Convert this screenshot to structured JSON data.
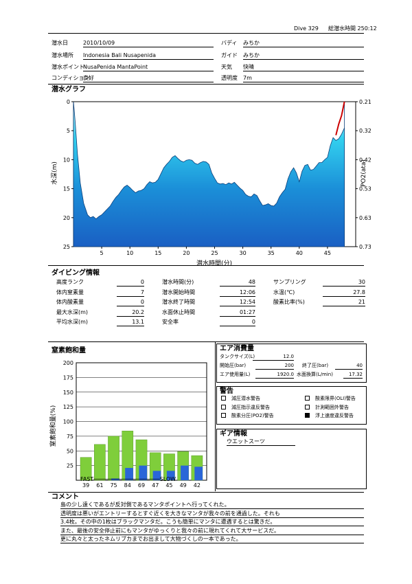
{
  "header": {
    "dive_no": "Dive 329",
    "total_time": "総潜水時間 250:12"
  },
  "info": {
    "date_label": "潜水日",
    "date": "2010/10/09",
    "buddy_label": "バディ",
    "buddy": "みちか",
    "place_label": "潜水場所",
    "place": "Indonesia Bali   Nusapenida",
    "guide_label": "ガイド",
    "guide": "みちか",
    "point_label": "潜水ポイント",
    "point": "NusaPenida   MantaPoint",
    "weather_label": "天気",
    "weather": "快晴",
    "condition_label": "コンディション",
    "condition": "良好",
    "visibility_label": "透明度",
    "visibility": "7m"
  },
  "graph": {
    "title": "潜水グラフ",
    "ylabel_left": "水深(m)",
    "ylabel_right": "PO2(ata)",
    "xlabel": "潜水時間(分)",
    "left_ticks": [
      "0",
      "5",
      "10",
      "15",
      "20",
      "25"
    ],
    "right_ticks": [
      "0.21",
      "0.32",
      "0.42",
      "0.53",
      "0.63",
      "0.73"
    ],
    "x_ticks": [
      "5",
      "10",
      "15",
      "20",
      "25",
      "30",
      "35",
      "40",
      "45"
    ]
  },
  "chart_data": [
    {
      "type": "area",
      "xlabel": "潜水時間(分)",
      "ylabel": "水深(m)",
      "xlim": [
        0,
        50
      ],
      "ylim": [
        25,
        0
      ],
      "y2label": "PO2(ata)",
      "y2lim": [
        0.73,
        0.21
      ],
      "x": [
        0.0,
        0.3,
        0.7,
        1.2,
        1.8,
        2.5,
        3.0,
        3.5,
        4.0,
        4.5,
        5.0,
        5.5,
        6.0,
        6.5,
        7.0,
        7.5,
        8.0,
        8.5,
        9.0,
        9.5,
        10.0,
        10.5,
        11.0,
        11.5,
        12.0,
        12.5,
        13.0,
        13.5,
        14.0,
        14.5,
        15.0,
        15.5,
        16.0,
        16.5,
        17.0,
        17.5,
        18.0,
        18.5,
        19.0,
        19.5,
        20.0,
        20.5,
        21.0,
        21.5,
        22.0,
        22.5,
        23.0,
        23.5,
        24.0,
        24.5,
        25.0,
        25.5,
        26.0,
        26.5,
        27.0,
        27.5,
        28.0,
        28.5,
        29.0,
        29.5,
        30.0,
        30.5,
        31.0,
        31.5,
        32.0,
        32.5,
        33.0,
        33.5,
        34.0,
        34.5,
        35.0,
        35.5,
        36.0,
        36.5,
        37.0,
        37.5,
        38.0,
        38.5,
        39.0,
        39.5,
        40.0,
        40.5,
        41.0,
        41.5,
        42.0,
        42.5,
        43.0,
        43.5,
        44.0,
        44.5,
        45.0,
        45.5,
        46.0,
        46.5,
        47.0,
        47.5,
        48.0
      ],
      "depth": [
        0.0,
        3.5,
        9.0,
        14.0,
        17.5,
        19.5,
        20.0,
        19.8,
        20.2,
        19.8,
        19.5,
        19.0,
        18.5,
        18.0,
        17.2,
        16.5,
        16.0,
        15.3,
        14.7,
        14.4,
        14.8,
        15.3,
        15.7,
        15.4,
        15.3,
        15.0,
        14.3,
        13.8,
        14.0,
        13.9,
        13.4,
        12.4,
        11.4,
        10.8,
        10.3,
        9.6,
        9.3,
        9.8,
        10.2,
        10.4,
        10.1,
        10.0,
        10.1,
        10.6,
        10.8,
        10.5,
        10.3,
        10.4,
        10.8,
        12.3,
        13.2,
        14.0,
        14.2,
        14.1,
        14.3,
        14.0,
        14.2,
        13.9,
        14.4,
        14.9,
        15.3,
        16.0,
        16.3,
        16.4,
        15.9,
        16.2,
        17.1,
        17.9,
        17.8,
        17.6,
        17.9,
        18.0,
        17.5,
        16.4,
        15.7,
        15.1,
        13.3,
        12.1,
        11.4,
        12.3,
        13.8,
        12.0,
        11.0,
        10.8,
        11.8,
        11.7,
        11.1,
        10.5,
        10.5,
        10.0,
        9.6,
        7.6,
        6.2,
        6.7,
        6.4,
        5.6,
        4.5
      ],
      "po2_x": [
        46.5,
        47.0,
        47.5,
        48.0
      ],
      "po2": [
        0.33,
        0.29,
        0.26,
        0.21
      ],
      "colors": {
        "fill_top": "#c9eefc",
        "fill_bottom": "#1b6dc8",
        "line": "#0b3f7a",
        "po2_line": "#cc0000"
      }
    },
    {
      "type": "bar",
      "ylabel": "窒素飽和量(%)",
      "ylim": [
        0,
        200
      ],
      "categories": [
        "39",
        "61",
        "75",
        "84",
        "69",
        "47",
        "45",
        "49",
        "42"
      ],
      "series": [
        {
          "values": [
            39,
            61,
            75,
            84,
            69,
            47,
            45,
            49,
            42
          ],
          "color": "#7fce3b"
        },
        {
          "values": [
            0,
            0,
            3,
            21,
            25,
            16,
            16,
            25,
            23
          ],
          "color": "#2a66d8"
        }
      ]
    }
  ],
  "diving_info": {
    "title": "ダイビング情報",
    "col1": [
      {
        "label": "高度ランク",
        "value": "0"
      },
      {
        "label": "体内窒素量",
        "value": "7"
      },
      {
        "label": "体内酸素量",
        "value": "0"
      },
      {
        "label": "最大水深(m)",
        "value": "20.2"
      },
      {
        "label": "平均水深(m)",
        "value": "13.1"
      }
    ],
    "col2": [
      {
        "label": "潜水時間(分)",
        "value": "48"
      },
      {
        "label": "潜水開始時間",
        "value": "12:06"
      },
      {
        "label": "潜水終了時間",
        "value": "12:54"
      },
      {
        "label": "水面休止時間",
        "value": "01:27"
      },
      {
        "label": "安全率",
        "value": "0"
      }
    ],
    "col3": [
      {
        "label": "サンプリング",
        "value": "30"
      },
      {
        "label": "水温(℃)",
        "value": "27.8"
      },
      {
        "label": "酸素比率(%)",
        "value": "21"
      }
    ]
  },
  "nitrogen": {
    "title": "窒素飽和量",
    "ylabel": "窒素飽和量(%)",
    "y_ticks": [
      "200",
      "175",
      "150",
      "125",
      "100",
      "75",
      "50",
      "25"
    ],
    "fast_slow": "FAST────────────────────SLOW"
  },
  "air": {
    "title": "エア消費量",
    "tank_label": "タンクサイズ(L)",
    "tank": "12.0",
    "start_label": "開始圧(bar)",
    "start": "200",
    "end_label": "終了圧(bar)",
    "end": "40",
    "used_label": "エア使用量(L)",
    "used": "1920.0",
    "surface_label": "水面換算(L/min)",
    "surface": "17.32"
  },
  "warnings": {
    "title": "警告",
    "items": [
      {
        "label": "減圧潜水警告",
        "checked": false
      },
      {
        "label": "酸素限界(OLI)警告",
        "checked": false
      },
      {
        "label": "減圧指示違反警告",
        "checked": false
      },
      {
        "label": "計測範囲外警告",
        "checked": false
      },
      {
        "label": "酸素分圧(PO2)警告",
        "checked": false
      },
      {
        "label": "浮上速度違反警告",
        "checked": true
      }
    ]
  },
  "gear": {
    "title": "ギア情報",
    "value": "ウエットスーツ"
  },
  "comment": {
    "title": "コメント",
    "lines": [
      "島の少し遠くであるが反対側であるマンタポイントへ行ってくれた。",
      "透明度は悪いがエントリーするとすぐ近くを大きなマンタが我々の前を通過した。それも",
      "3.4枚。その中の1枚はブラックマンタだ。こうも簡単にマンタに遭遇するとは驚きだ。",
      "また、最後の安全停止前にもマンタがゆっくりと我々の前に現れてくれて大サービスだ。",
      "更に丸々と太ったネムリブカまでお出まして大物づくしの一本であった。"
    ]
  }
}
